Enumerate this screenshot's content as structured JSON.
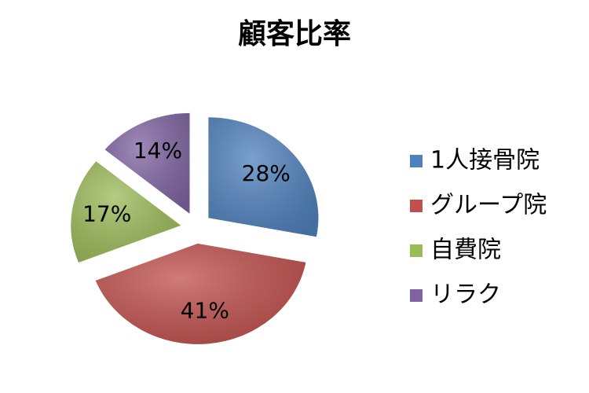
{
  "chart_data": {
    "type": "pie",
    "title": "顧客比率",
    "categories": [
      "1人接骨院",
      "グループ院",
      "自費院",
      "リラク"
    ],
    "values": [
      28,
      41,
      17,
      14
    ],
    "value_labels": [
      "28%",
      "41%",
      "17%",
      "14%"
    ],
    "colors": [
      "#4f81bd",
      "#c0504d",
      "#9bbb59",
      "#8064a2"
    ],
    "legend": "right"
  }
}
